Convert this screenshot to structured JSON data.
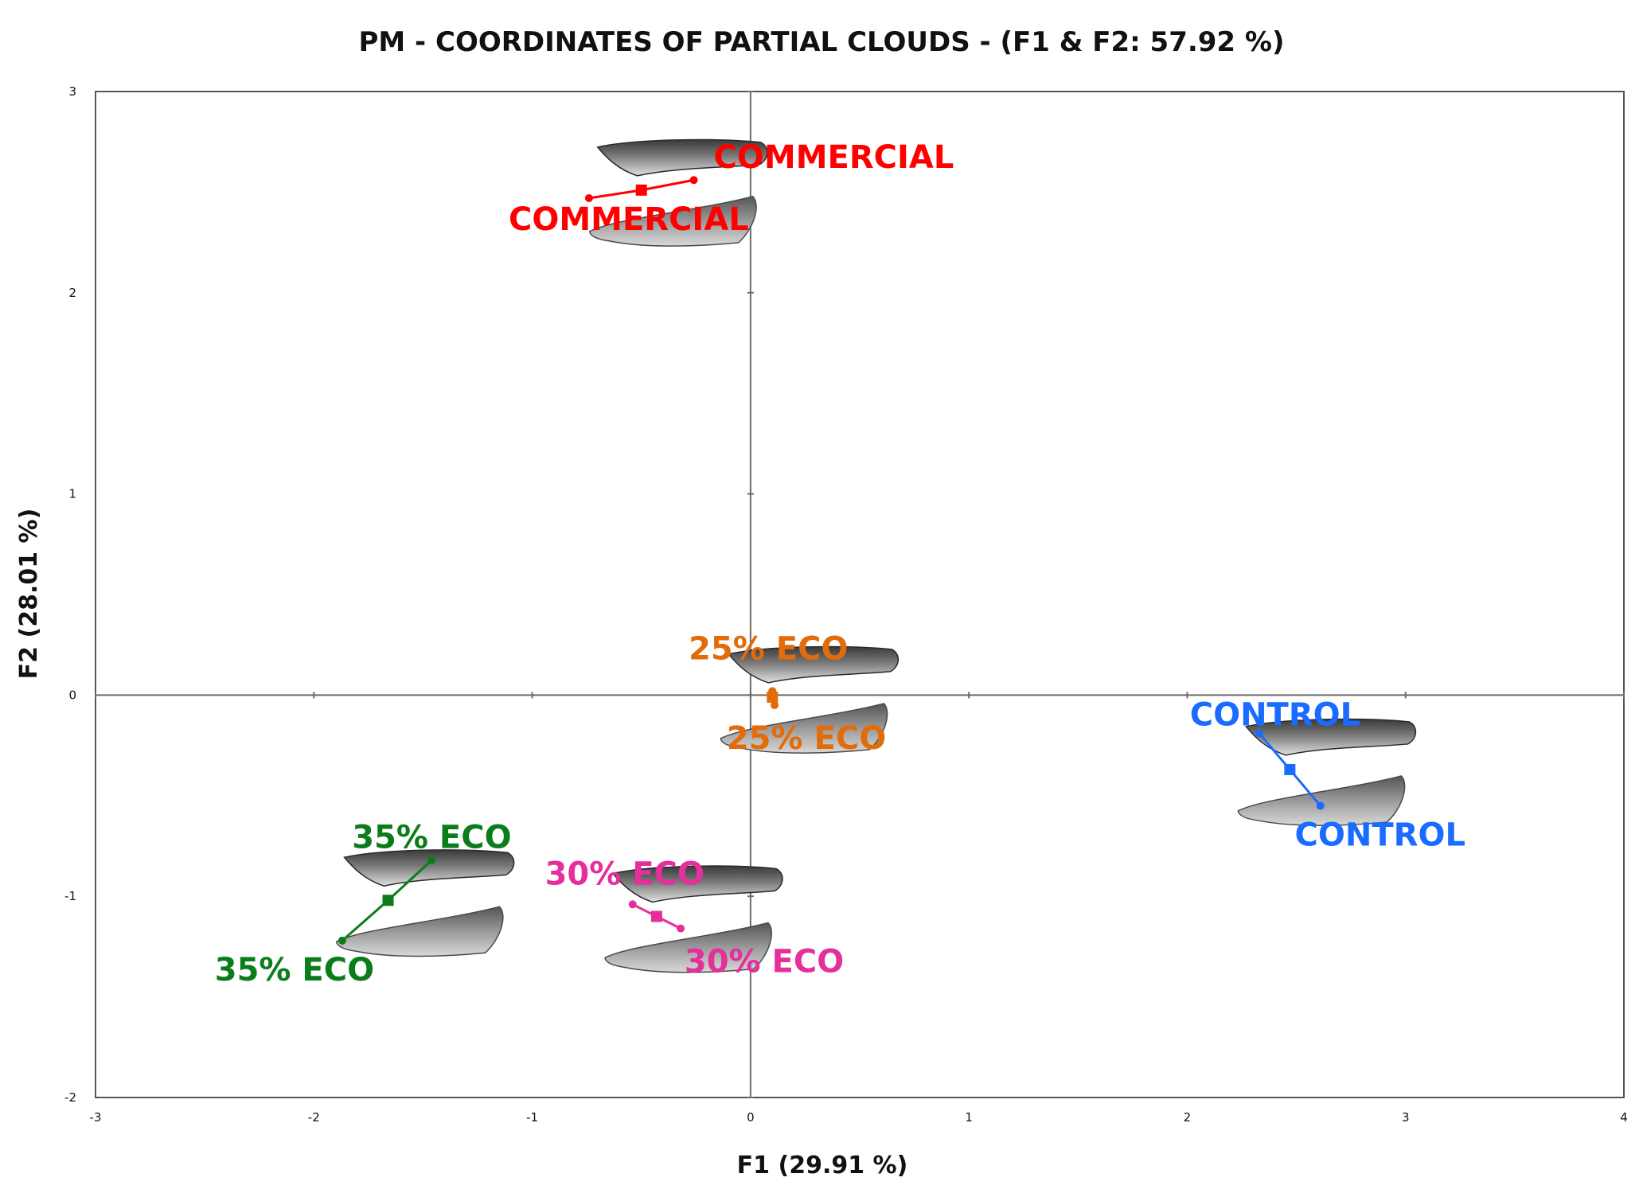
{
  "chart_data": {
    "type": "scatter",
    "title": "PM  - COORDINATES OF PARTIAL CLOUDS - (F1 & F2: 57.92 %)",
    "xlabel": "F1 (29.91 %)",
    "ylabel": "F2 (28.01 %)",
    "xlim": [
      -3,
      4
    ],
    "ylim": [
      -2,
      3
    ],
    "xticks": [
      -3,
      -2,
      -1,
      0,
      1,
      2,
      3,
      4
    ],
    "yticks": [
      -2,
      -1,
      0,
      1,
      2,
      3
    ],
    "grid": false,
    "zero_lines": true,
    "series": [
      {
        "name": "COMMERCIAL",
        "color": "#ff0000",
        "center": [
          -0.5,
          2.51
        ],
        "partials": [
          [
            -0.74,
            2.47
          ],
          [
            -0.26,
            2.56
          ]
        ],
        "labels": [
          "COMMERCIAL",
          "COMMERCIAL"
        ]
      },
      {
        "name": "25% ECO",
        "color": "#e36c0a",
        "center": [
          0.1,
          -0.01
        ],
        "partials": [
          [
            0.1,
            0.02
          ],
          [
            0.11,
            -0.05
          ]
        ],
        "labels": [
          "25% ECO",
          "25% ECO"
        ]
      },
      {
        "name": "CONTROL",
        "color": "#1a6bff",
        "center": [
          2.47,
          -0.37
        ],
        "partials": [
          [
            2.33,
            -0.19
          ],
          [
            2.61,
            -0.55
          ]
        ],
        "labels": [
          "CONTROL",
          "CONTROL"
        ]
      },
      {
        "name": "35% ECO",
        "color": "#0a7d1a",
        "center": [
          -1.66,
          -1.02
        ],
        "partials": [
          [
            -1.46,
            -0.82
          ],
          [
            -1.87,
            -1.22
          ]
        ],
        "labels": [
          "35% ECO",
          "35% ECO"
        ]
      },
      {
        "name": "30% ECO",
        "color": "#e62e9c",
        "center": [
          -0.43,
          -1.1
        ],
        "partials": [
          [
            -0.54,
            -1.04
          ],
          [
            -0.32,
            -1.16
          ]
        ],
        "labels": [
          "30% ECO",
          "30% ECO"
        ]
      }
    ],
    "fillet_images": [
      {
        "group": "COMMERCIAL",
        "position": "top",
        "description": "fish fillet"
      },
      {
        "group": "COMMERCIAL",
        "position": "bottom",
        "description": "fish fillet"
      },
      {
        "group": "25% ECO",
        "position": "top",
        "description": "fish fillet"
      },
      {
        "group": "25% ECO",
        "position": "bottom",
        "description": "fish fillet"
      },
      {
        "group": "CONTROL",
        "position": "top",
        "description": "fish fillet"
      },
      {
        "group": "CONTROL",
        "position": "bottom",
        "description": "fish fillet"
      },
      {
        "group": "35% ECO",
        "position": "top",
        "description": "fish fillet"
      },
      {
        "group": "35% ECO",
        "position": "bottom",
        "description": "fish fillet"
      },
      {
        "group": "30% ECO",
        "position": "top",
        "description": "fish fillet"
      },
      {
        "group": "30% ECO",
        "position": "bottom",
        "description": "fish fillet"
      }
    ]
  }
}
